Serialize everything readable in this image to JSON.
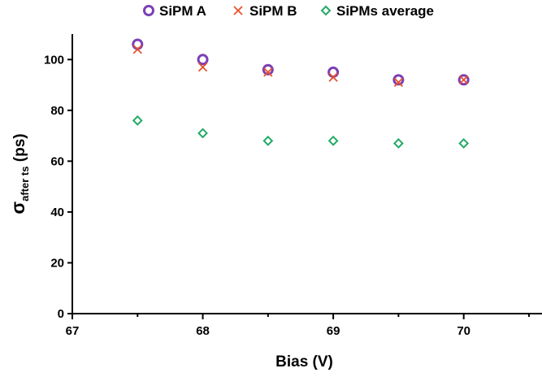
{
  "chart_data": {
    "type": "scatter",
    "title": "",
    "xlabel": "Bias (V)",
    "ylabel": {
      "main": "σ",
      "sub": "after ts",
      "suffix": " (ps)"
    },
    "xlim": [
      67,
      70.6
    ],
    "ylim": [
      0,
      110
    ],
    "xticks": [
      67,
      68,
      69,
      70
    ],
    "yticks": [
      0,
      20,
      40,
      60,
      80,
      100
    ],
    "grid": false,
    "legend": "top",
    "series": [
      {
        "name": "SiPM A",
        "marker": "circle",
        "color": "#7b3fb5",
        "x": [
          67.5,
          68,
          68.5,
          69,
          69.5,
          70
        ],
        "y": [
          106,
          100,
          96,
          95,
          92,
          92
        ]
      },
      {
        "name": "SiPM B",
        "marker": "x",
        "color": "#e8502a",
        "x": [
          67.5,
          68,
          68.5,
          69,
          69.5,
          70
        ],
        "y": [
          104,
          97,
          95,
          93,
          91,
          92
        ]
      },
      {
        "name": "SiPMs average",
        "marker": "diamond",
        "color": "#22aa66",
        "x": [
          67.5,
          68,
          68.5,
          69,
          69.5,
          70
        ],
        "y": [
          76,
          71,
          68,
          68,
          67,
          67
        ]
      }
    ]
  }
}
